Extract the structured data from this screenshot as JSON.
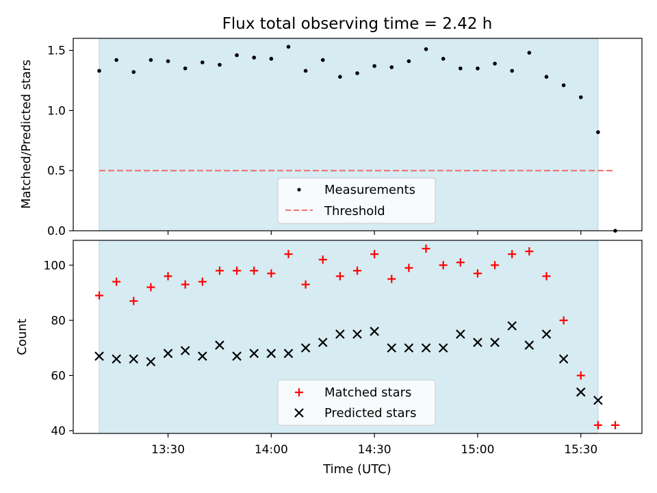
{
  "chart_data": [
    {
      "type": "scatter",
      "title": "Flux total observing time = 2.42 h",
      "ylabel": "Matched/Predicted stars",
      "xlabel": "",
      "ylim": [
        0,
        1.6
      ],
      "yticks": [
        "0.0",
        "0.5",
        "1.0",
        "1.5"
      ],
      "grid": false,
      "legend": {
        "placement": "lower-center",
        "entries": [
          "Measurements",
          "Threshold"
        ]
      },
      "colors": {
        "measurements": "#000000",
        "threshold": "#f07070",
        "band": "#add8e6"
      },
      "shaded_x_range": [
        "13:10",
        "15:35"
      ],
      "threshold": {
        "value": 0.5,
        "x_range": [
          "13:10",
          "15:40"
        ]
      },
      "series": [
        {
          "name": "Measurements",
          "x": [
            "13:10",
            "13:15",
            "13:20",
            "13:25",
            "13:30",
            "13:35",
            "13:40",
            "13:45",
            "13:50",
            "13:55",
            "14:00",
            "14:05",
            "14:10",
            "14:15",
            "14:20",
            "14:25",
            "14:30",
            "14:35",
            "14:40",
            "14:45",
            "14:50",
            "14:55",
            "15:00",
            "15:05",
            "15:10",
            "15:15",
            "15:20",
            "15:25",
            "15:30",
            "15:35",
            "15:40"
          ],
          "y": [
            1.33,
            1.42,
            1.32,
            1.42,
            1.41,
            1.35,
            1.4,
            1.38,
            1.46,
            1.44,
            1.43,
            1.53,
            1.33,
            1.42,
            1.28,
            1.31,
            1.37,
            1.36,
            1.41,
            1.51,
            1.43,
            1.35,
            1.35,
            1.39,
            1.33,
            1.48,
            1.28,
            1.21,
            1.11,
            0.82,
            0.0
          ]
        }
      ]
    },
    {
      "type": "scatter",
      "ylabel": "Count",
      "xlabel": "Time (UTC)",
      "ylim": [
        39,
        109
      ],
      "yticks": [
        "40",
        "60",
        "80",
        "100"
      ],
      "xticks": [
        "13:30",
        "14:00",
        "14:30",
        "15:00",
        "15:30"
      ],
      "grid": false,
      "legend": {
        "placement": "lower-center",
        "entries": [
          "Matched stars",
          "Predicted stars"
        ]
      },
      "colors": {
        "matched": "#ff0000",
        "predicted": "#000000",
        "band": "#add8e6"
      },
      "shaded_x_range": [
        "13:10",
        "15:35"
      ],
      "series": [
        {
          "name": "Matched stars",
          "x": [
            "13:10",
            "13:15",
            "13:20",
            "13:25",
            "13:30",
            "13:35",
            "13:40",
            "13:45",
            "13:50",
            "13:55",
            "14:00",
            "14:05",
            "14:10",
            "14:15",
            "14:20",
            "14:25",
            "14:30",
            "14:35",
            "14:40",
            "14:45",
            "14:50",
            "14:55",
            "15:00",
            "15:05",
            "15:10",
            "15:15",
            "15:20",
            "15:25",
            "15:30",
            "15:35",
            "15:40"
          ],
          "y": [
            89,
            94,
            87,
            92,
            96,
            93,
            94,
            98,
            98,
            98,
            97,
            104,
            93,
            102,
            96,
            98,
            104,
            95,
            99,
            106,
            100,
            101,
            97,
            100,
            104,
            105,
            96,
            80,
            60,
            42,
            42
          ]
        },
        {
          "name": "Predicted stars",
          "x": [
            "13:10",
            "13:15",
            "13:20",
            "13:25",
            "13:30",
            "13:35",
            "13:40",
            "13:45",
            "13:50",
            "13:55",
            "14:00",
            "14:05",
            "14:10",
            "14:15",
            "14:20",
            "14:25",
            "14:30",
            "14:35",
            "14:40",
            "14:45",
            "14:50",
            "14:55",
            "15:00",
            "15:05",
            "15:10",
            "15:15",
            "15:20",
            "15:25",
            "15:30",
            "15:35"
          ],
          "y": [
            67,
            66,
            66,
            65,
            68,
            69,
            67,
            71,
            67,
            68,
            68,
            68,
            70,
            72,
            75,
            75,
            76,
            70,
            70,
            70,
            70,
            75,
            72,
            72,
            78,
            71,
            75,
            66,
            54,
            51
          ]
        }
      ]
    }
  ]
}
